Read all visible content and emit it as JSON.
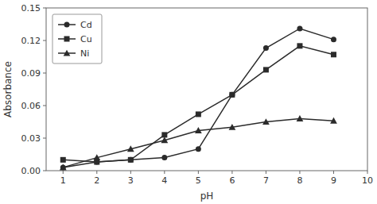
{
  "chart_data": {
    "type": "line",
    "x": [
      1,
      2,
      3,
      4,
      5,
      6,
      7,
      8,
      9
    ],
    "series": [
      {
        "name": "Cd",
        "color": "#2b2b2b",
        "marker": "circle",
        "values": [
          0.003,
          0.008,
          0.01,
          0.012,
          0.02,
          0.07,
          0.113,
          0.131,
          0.121
        ]
      },
      {
        "name": "Cu",
        "color": "#2b2b2b",
        "marker": "square",
        "values": [
          0.01,
          0.008,
          0.01,
          0.033,
          0.052,
          0.07,
          0.093,
          0.115,
          0.107
        ]
      },
      {
        "name": "Ni",
        "color": "#2b2b2b",
        "marker": "triangle",
        "values": [
          0.003,
          0.012,
          0.02,
          0.028,
          0.037,
          0.04,
          0.045,
          0.048,
          0.046
        ]
      }
    ],
    "x_label": "pH",
    "y_label": "Absorbance",
    "xlim": [
      0.5,
      10
    ],
    "ylim": [
      0.0,
      0.15
    ],
    "xticks": [
      1,
      2,
      3,
      4,
      5,
      6,
      7,
      8,
      9,
      10
    ],
    "yticks": [
      {
        "value": 0.0,
        "label": "0.00"
      },
      0.03,
      0.06,
      0.09,
      0.12,
      0.15
    ],
    "grid": false,
    "legend": "upper left"
  }
}
